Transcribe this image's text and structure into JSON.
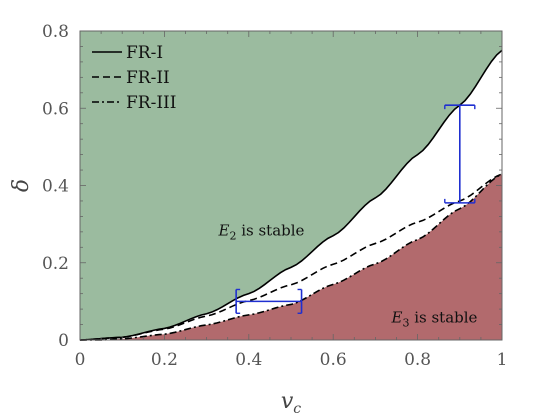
{
  "chart_data": {
    "type": "line",
    "xlabel": "v_c",
    "ylabel": "δ",
    "xlim": [
      0,
      1
    ],
    "ylim": [
      0,
      0.8
    ],
    "x_ticks": [
      "0",
      "0.2",
      "0.4",
      "0.6",
      "0.8",
      "1"
    ],
    "y_ticks": [
      "0",
      "0.2",
      "0.4",
      "0.6",
      "0.8"
    ],
    "grid": false,
    "legend_position": "top-left",
    "series": [
      {
        "name": "FR-I",
        "style": "solid",
        "x": [
          0,
          0.1,
          0.2,
          0.3,
          0.4,
          0.5,
          0.6,
          0.7,
          0.8,
          0.9,
          1.0
        ],
        "y": [
          0,
          0.007,
          0.03,
          0.068,
          0.12,
          0.188,
          0.27,
          0.368,
          0.48,
          0.608,
          0.75
        ]
      },
      {
        "name": "FR-II",
        "style": "dashed",
        "x": [
          0,
          0.1,
          0.2,
          0.3,
          0.4,
          0.5,
          0.6,
          0.7,
          0.8,
          0.9,
          1.0
        ],
        "y": [
          0,
          0.007,
          0.028,
          0.062,
          0.102,
          0.143,
          0.196,
          0.25,
          0.305,
          0.36,
          0.43
        ]
      },
      {
        "name": "FR-III",
        "style": "dashdot",
        "x": [
          0,
          0.05,
          0.1,
          0.2,
          0.3,
          0.4,
          0.5,
          0.6,
          0.7,
          0.8,
          0.9,
          1.0
        ],
        "y": [
          0,
          0.0,
          0.003,
          0.015,
          0.039,
          0.065,
          0.092,
          0.144,
          0.197,
          0.26,
          0.34,
          0.43
        ]
      }
    ],
    "regions": [
      {
        "label_main": "E",
        "label_sub": "2",
        "label_rest": " is stable",
        "color": "#9bbb9f",
        "label_at": [
          0.43,
          0.27
        ]
      },
      {
        "label_main": "E",
        "label_sub": "3",
        "label_rest": " is stable",
        "color": "#b26a6d",
        "label_at": [
          0.84,
          0.045
        ]
      }
    ],
    "error_bars": [
      {
        "orientation": "horizontal",
        "x_range": [
          0.37,
          0.525
        ],
        "y": 0.1,
        "color": "#1f2fd0"
      },
      {
        "orientation": "vertical",
        "x": 0.9,
        "y_range": [
          0.355,
          0.608
        ],
        "color": "#1f2fd0"
      }
    ],
    "colors": {
      "line": "#000000",
      "axis": "#666666",
      "error_bar": "#1f2fd0"
    }
  }
}
